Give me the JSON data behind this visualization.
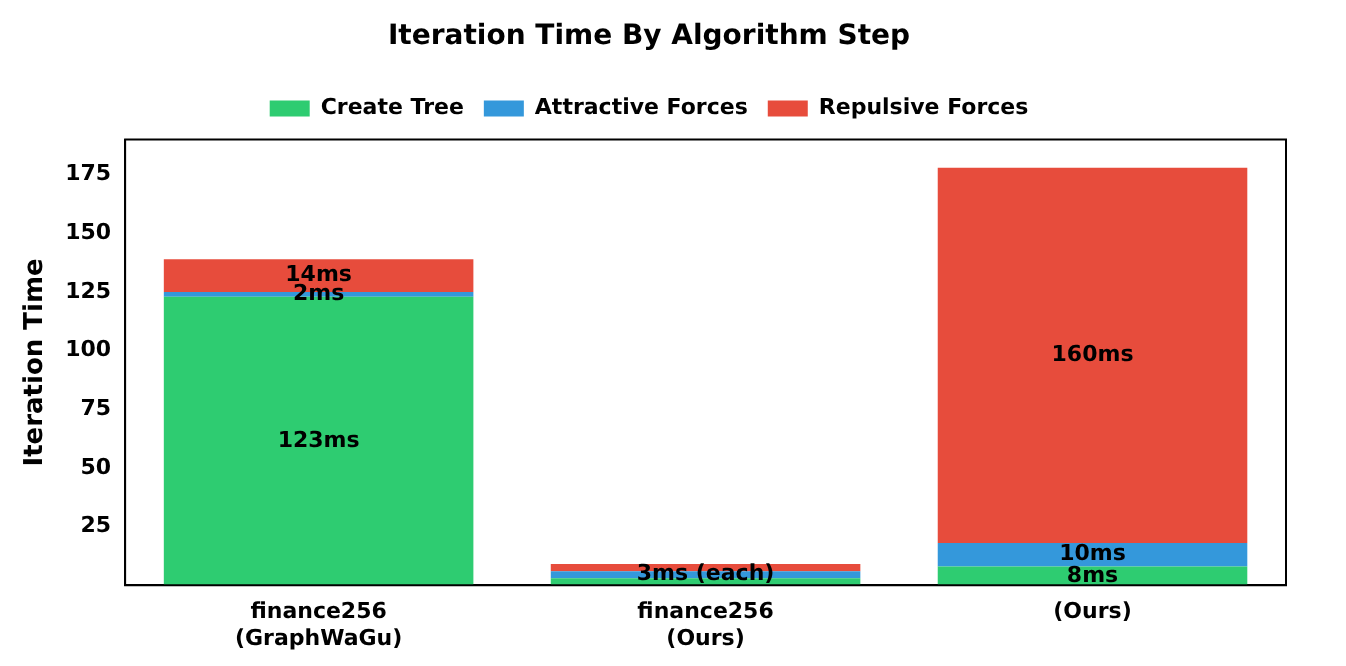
{
  "chart_data": {
    "type": "bar",
    "title": "Iteration Time By Algorithm Step",
    "ylabel": "Iteration Time",
    "categories": [
      "finance256\n(GraphWaGu)",
      "finance256\n(Ours)",
      "(Ours)"
    ],
    "stacked": true,
    "ylim": [
      0,
      190
    ],
    "yticks": [
      25,
      50,
      75,
      100,
      125,
      150,
      175
    ],
    "grid": false,
    "legend": "top",
    "series": [
      {
        "name": "Create Tree",
        "color": "#2ecc71",
        "values": [
          123,
          3,
          8
        ],
        "value_labels": [
          "123ms",
          null,
          "8ms"
        ]
      },
      {
        "name": "Attractive Forces",
        "color": "#3498db",
        "values": [
          2,
          3,
          10
        ],
        "value_labels": [
          "2ms",
          "3ms (each)",
          "10ms"
        ]
      },
      {
        "name": "Repulsive Forces",
        "color": "#e74c3c",
        "values": [
          14,
          3,
          160
        ],
        "value_labels": [
          "14ms",
          null,
          "160ms"
        ]
      }
    ]
  }
}
